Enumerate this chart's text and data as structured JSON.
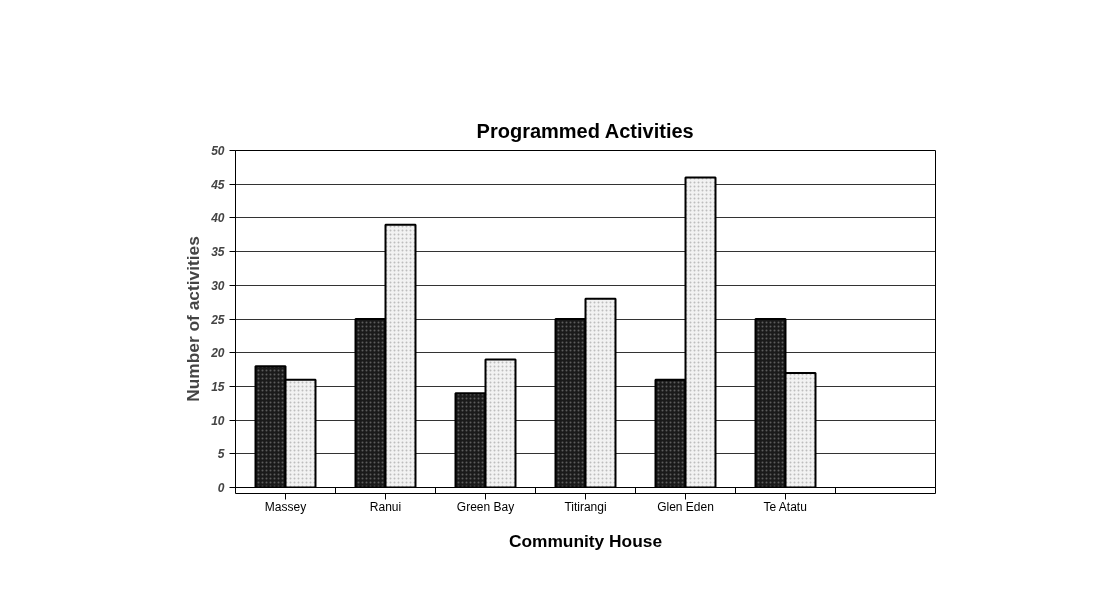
{
  "chart_data": {
    "type": "bar",
    "title": "Programmed Activities",
    "xlabel": "Community House",
    "ylabel": "Number of activities",
    "categories": [
      "Massey",
      "Ranui",
      "Green Bay",
      "Titirangi",
      "Glen Eden",
      "Te Atatu",
      null
    ],
    "series": [
      {
        "color": "#1a1a1a",
        "values": [
          18,
          25,
          14,
          25,
          16,
          25,
          null
        ]
      },
      {
        "color": "#f2f2f2",
        "values": [
          16,
          39,
          19,
          28,
          46,
          17,
          null
        ]
      }
    ],
    "ylim": [
      0,
      50
    ],
    "yticks": [
      0,
      5,
      10,
      15,
      20,
      25,
      30,
      35,
      40,
      45,
      50
    ],
    "grid": "y"
  }
}
